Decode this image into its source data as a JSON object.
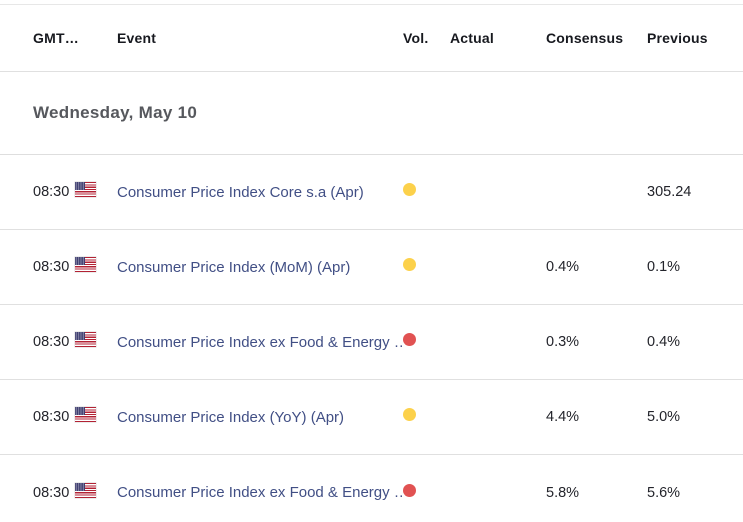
{
  "table": {
    "columns": {
      "time": "GMT…",
      "event": "Event",
      "vol": "Vol.",
      "actual": "Actual",
      "consensus": "Consensus",
      "previous": "Previous"
    },
    "date_header": "Wednesday, May 10",
    "rows": [
      {
        "time": "08:30",
        "country": "United States",
        "flag_icon": "us-flag-icon",
        "event": "Consumer Price Index Core s.a (Apr)",
        "volatility": "medium",
        "actual": "",
        "consensus": "",
        "previous": "305.24"
      },
      {
        "time": "08:30",
        "country": "United States",
        "flag_icon": "us-flag-icon",
        "event": "Consumer Price Index (MoM) (Apr)",
        "volatility": "medium",
        "actual": "",
        "consensus": "0.4%",
        "previous": "0.1%"
      },
      {
        "time": "08:30",
        "country": "United States",
        "flag_icon": "us-flag-icon",
        "event": "Consumer Price Index ex Food & Energy …",
        "volatility": "high",
        "actual": "",
        "consensus": "0.3%",
        "previous": "0.4%"
      },
      {
        "time": "08:30",
        "country": "United States",
        "flag_icon": "us-flag-icon",
        "event": "Consumer Price Index (YoY) (Apr)",
        "volatility": "medium",
        "actual": "",
        "consensus": "4.4%",
        "previous": "5.0%"
      },
      {
        "time": "08:30",
        "country": "United States",
        "flag_icon": "us-flag-icon",
        "event": "Consumer Price Index ex Food & Energy …",
        "volatility": "high",
        "actual": "",
        "consensus": "5.8%",
        "previous": "5.6%"
      }
    ],
    "colors": {
      "volatility_medium": "#fcd14b",
      "volatility_high": "#e15252",
      "event_link": "#414f85"
    }
  }
}
